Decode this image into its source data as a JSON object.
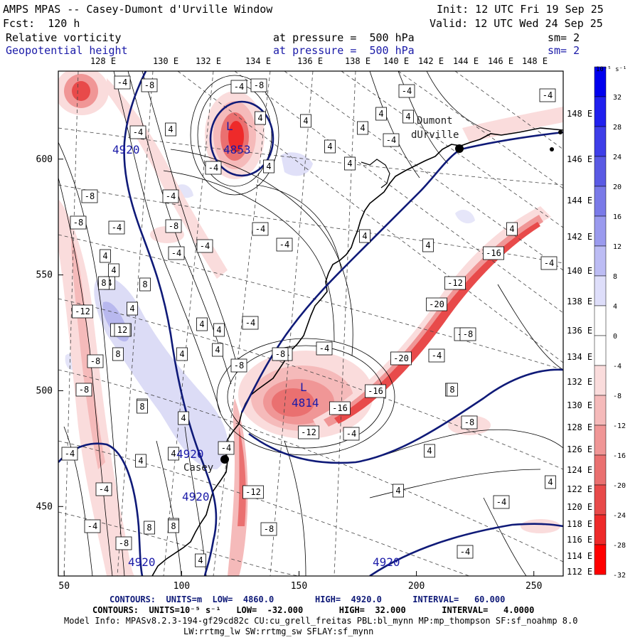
{
  "header": {
    "title": "AMPS MPAS -- Casey-Dumont d'Urville Window",
    "init": "Init: 12 UTC Fri 19 Sep 25",
    "fcst": "Fcst:  120 h",
    "valid": "Valid: 12 UTC Wed 24 Sep 25",
    "field1": {
      "name": "Relative vorticity",
      "level": "at pressure =  500 hPa",
      "sm": "sm= 2"
    },
    "field2": {
      "name": "Geopotential height",
      "level": "at pressure =  500 hPa",
      "sm": "sm= 2"
    }
  },
  "map": {
    "x_ticks": [
      "50",
      "100",
      "150",
      "200",
      "250"
    ],
    "y_ticks": [
      "600",
      "550",
      "500",
      "450"
    ],
    "lon_labels_top": [
      "128 E",
      "130 E",
      "132 E",
      "134 E",
      "136 E",
      "138 E",
      "140 E",
      "142 E",
      "144 E",
      "146 E",
      "148 E"
    ],
    "lon_labels_right": [
      "148 E",
      "146 E",
      "144 E",
      "142 E",
      "140 E",
      "138 E",
      "136 E",
      "134 E",
      "132 E",
      "130 E",
      "128 E",
      "126 E",
      "124 E",
      "122 E",
      "120 E",
      "118 E",
      "116 E",
      "114 E",
      "112 E"
    ],
    "stations": [
      {
        "name": "Dumont\ndUrville",
        "label_line1": "Dumont",
        "label_line2": "dUrville"
      },
      {
        "name": "Casey",
        "label_line1": "Casey"
      }
    ],
    "height_contour_labels": [
      "4920",
      "4920",
      "4920",
      "4920",
      "4920"
    ],
    "lows": [
      {
        "symbol": "L",
        "value": "4814"
      },
      {
        "symbol": "L",
        "value": "4853"
      }
    ],
    "vorticity_labels": [
      "-4",
      "-8",
      "-4",
      "-8",
      "4",
      "4",
      "4",
      "4",
      "-4",
      "-4",
      "4",
      "-4",
      "4",
      "4",
      "4",
      "4",
      "-4",
      "-4",
      "-8",
      "-4",
      "-4",
      "-8",
      "-4",
      "-8",
      "4",
      "-4",
      "4",
      "-4",
      "-4",
      "4",
      "4",
      "4",
      "8",
      "8",
      "-12",
      "4",
      "-12",
      "4",
      "4",
      "-20",
      "12",
      "-4",
      "4",
      "4",
      "-4",
      "8",
      "4",
      "-8",
      "-4",
      "-20",
      "-4",
      "-8",
      "-8",
      "-16",
      "-16",
      "4",
      "8",
      "4",
      "8",
      "-12",
      "4",
      "-8",
      "-4",
      "4",
      "4",
      "-4",
      "-4",
      "-4",
      "8",
      "4",
      "-12",
      "-8",
      "-4",
      "-4",
      "8",
      "-8",
      "-4",
      "4",
      "-8",
      "-12",
      "-16",
      "4",
      "-4",
      "-4",
      "-8",
      "4",
      "8"
    ]
  },
  "colorbar": {
    "unit_label": "10⁻⁵ s⁻¹",
    "labels": [
      "32",
      "28",
      "24",
      "20",
      "16",
      "12",
      "8",
      "4",
      "0",
      "-4",
      "-8",
      "-12",
      "-16",
      "-20",
      "-24",
      "-28",
      "-32"
    ],
    "colors": [
      "#0000ee",
      "#2020ee",
      "#3e3ee8",
      "#5a5ae4",
      "#7a7ae8",
      "#9a9aee",
      "#bcbcf4",
      "#dedefa",
      "#ffffff",
      "#ffffff",
      "#fadcdc",
      "#f5baba",
      "#f09696",
      "#ea7070",
      "#e84a4a",
      "#ee2a2a",
      "#ff0000"
    ]
  },
  "footer": {
    "line1": "CONTOURS:  UNITS=m  LOW=  4860.0        HIGH=  4920.0      INTERVAL=   60.000",
    "line2": "CONTOURS:  UNITS=10⁻⁵ s⁻¹   LOW=  -32.000       HIGH=  32.000       INTERVAL=   4.0000",
    "line3": "Model Info: MPASv8.2.3-194-gf29cd82c CU:cu_grell_freitas PBL:bl_mynn MP:mp_thompson SF:sf_noahmp 8.0",
    "line4": "LW:rrtmg_lw SW:rrtmg_sw SFLAY:sf_mynn"
  },
  "style": {
    "height_contour_color": "#0f1a78",
    "positive_vorticity": "#5a5ae4",
    "negative_vorticity": "#e84a4a",
    "coast_color": "#000000"
  }
}
